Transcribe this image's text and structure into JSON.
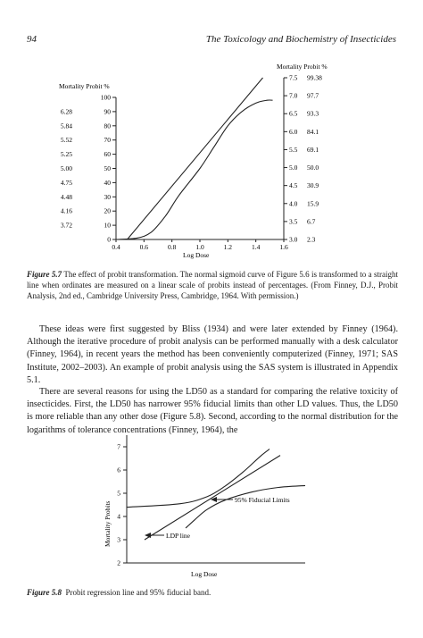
{
  "header": {
    "page_number": "94",
    "running_title": "The Toxicology and Biochemistry of Insecticides"
  },
  "figure_5_7": {
    "caption_label": "Figure 5.7",
    "caption_text": "The effect of probit transformation. The normal sigmoid curve of Figure 5.6 is transformed to a straight line when ordinates are measured on a linear scale of probits instead of percentages. (From Finney, D.J., Probit Analysis, 2nd ed., Cambridge University Press, Cambridge, 1964. With permission.)"
  },
  "body_text": {
    "p1": "These ideas were first suggested by Bliss (1934) and were later extended by Finney (1964). Although the iterative procedure of probit analysis can be performed manually with a desk calculator (Finney, 1964), in recent years the method has been conveniently computerized (Finney, 1971; SAS Institute, 2002–2003). An example of probit analysis using the SAS system is illustrated in Appendix 5.1.",
    "p2": "There are several reasons for using the LD50 as a standard for comparing the relative toxicity of insecticides. First, the LD50 has narrower 95% fiducial limits than other LD values. Thus, the LD50 is more reliable than any other dose (Figure 5.8). Second, according to the normal distribution for the logarithms of tolerance concentrations (Finney, 1964), the"
  },
  "figure_5_8": {
    "caption_label": "Figure 5.8",
    "caption_text": "Probit regression line and 95% fiducial band."
  },
  "chart_data": [
    {
      "type": "line",
      "xlabel": "Log Dose",
      "x_ticks": [
        "0.4",
        "0.6",
        "0.8",
        "1.0",
        "1.2",
        "1.4",
        "1.6"
      ],
      "xlim": [
        0.4,
        1.6
      ],
      "left_axis": {
        "label": "Mortality Probit %",
        "ticks": [
          "0",
          "10",
          "20",
          "30",
          "40",
          "50",
          "60",
          "70",
          "80",
          "90",
          "100"
        ],
        "probit_labels": [
          "3.72",
          "4.16",
          "4.48",
          "4.75",
          "5.00",
          "5.25",
          "5.52",
          "5.84",
          "6.28"
        ],
        "ylim": [
          0,
          100
        ]
      },
      "right_axis": {
        "label": "Mortality Probit %",
        "probits": [
          "3.0",
          "3.5",
          "4.0",
          "4.5",
          "5.0",
          "5.5",
          "6.0",
          "6.5",
          "7.0",
          "7.5"
        ],
        "percents": [
          "2.3",
          "6.7",
          "15.9",
          "30.9",
          "50.0",
          "69.1",
          "84.1",
          "93.3",
          "97.7",
          "99.38"
        ],
        "ylim": [
          3.0,
          7.5
        ]
      },
      "series": [
        {
          "kind": "sigmoid (percent scale)",
          "points": [
            [
              0.4,
              0
            ],
            [
              0.55,
              1
            ],
            [
              0.65,
              5
            ],
            [
              0.75,
              16
            ],
            [
              0.85,
              31
            ],
            [
              1.0,
              50
            ],
            [
              1.1,
              65
            ],
            [
              1.2,
              80
            ],
            [
              1.3,
              90
            ],
            [
              1.4,
              96
            ],
            [
              1.48,
              98
            ],
            [
              1.52,
              98
            ]
          ]
        },
        {
          "kind": "straight line (probit scale)",
          "points": [
            [
              0.48,
              3.0
            ],
            [
              1.45,
              7.5
            ]
          ]
        }
      ]
    },
    {
      "type": "line",
      "xlabel": "Log Dose",
      "ylabel": "Mortality Probits",
      "y_ticks": [
        "2",
        "3",
        "4",
        "5",
        "6",
        "7"
      ],
      "ylim": [
        2,
        7
      ],
      "annotations": [
        "95% Fiducial Limits",
        "LDP line"
      ],
      "series": [
        {
          "kind": "LDP line",
          "points": [
            [
              0.1,
              3.0
            ],
            [
              0.86,
              6.63
            ]
          ]
        },
        {
          "kind": "upper fiducial limit",
          "points": [
            [
              0.0,
              4.4
            ],
            [
              0.3,
              4.55
            ],
            [
              0.45,
              4.85
            ],
            [
              0.55,
              5.3
            ],
            [
              0.65,
              5.9
            ],
            [
              0.75,
              6.6
            ],
            [
              0.8,
              6.9
            ]
          ]
        },
        {
          "kind": "lower fiducial limit",
          "points": [
            [
              0.33,
              3.5
            ],
            [
              0.38,
              3.85
            ],
            [
              0.45,
              4.3
            ],
            [
              0.55,
              4.7
            ],
            [
              0.7,
              5.05
            ],
            [
              0.85,
              5.25
            ],
            [
              1.0,
              5.33
            ]
          ]
        }
      ]
    }
  ]
}
